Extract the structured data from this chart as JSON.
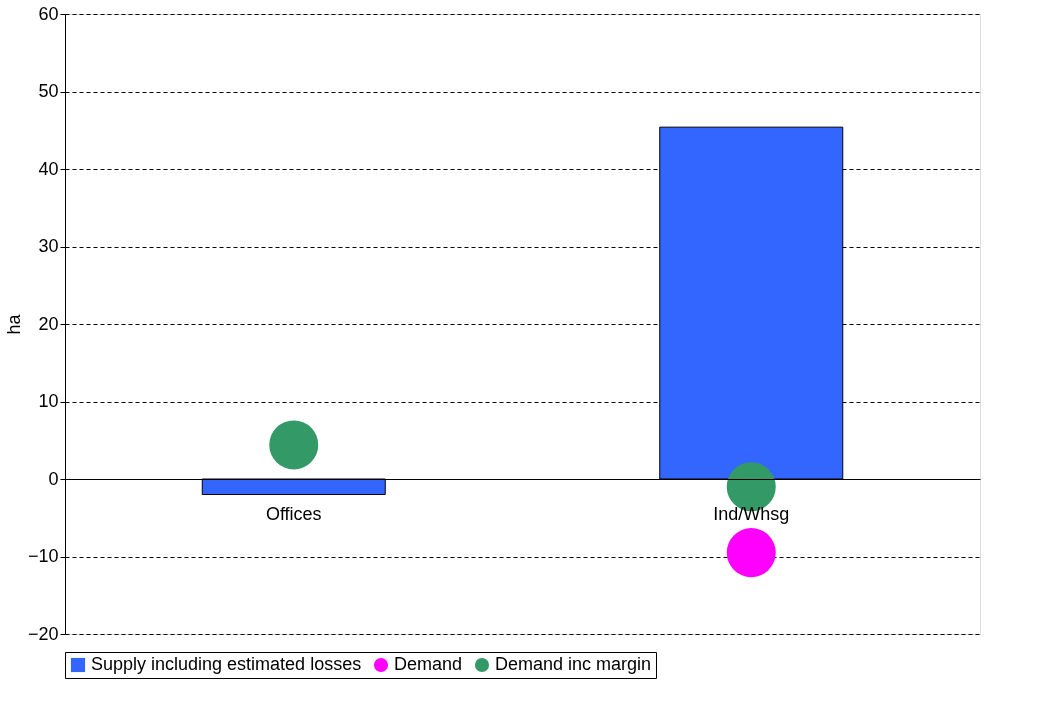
{
  "chart_data": {
    "type": "bar",
    "ylabel": "ha",
    "categories": [
      "Offices",
      "Ind/Whsg"
    ],
    "series": [
      {
        "name": "Supply including estimated losses",
        "color": "#3366ff",
        "values": [
          -2,
          45.4
        ]
      },
      {
        "name": "Demand",
        "type": "scatter",
        "color": "#ff00ff",
        "x": [
          "Offices",
          "Ind/Whsg"
        ],
        "values": [
          null,
          -9.5
        ]
      },
      {
        "name": "Demand inc margin",
        "type": "scatter",
        "color": "#339966",
        "x": [
          "Offices",
          "Ind/Whsg"
        ],
        "values": [
          4.4,
          -1.0
        ]
      }
    ],
    "ylim": [
      -20,
      60
    ],
    "yticks": [
      -20,
      -10,
      0,
      10,
      20,
      30,
      40,
      50,
      60
    ],
    "grid": "y",
    "legend": "bottom",
    "marker": "circle"
  }
}
